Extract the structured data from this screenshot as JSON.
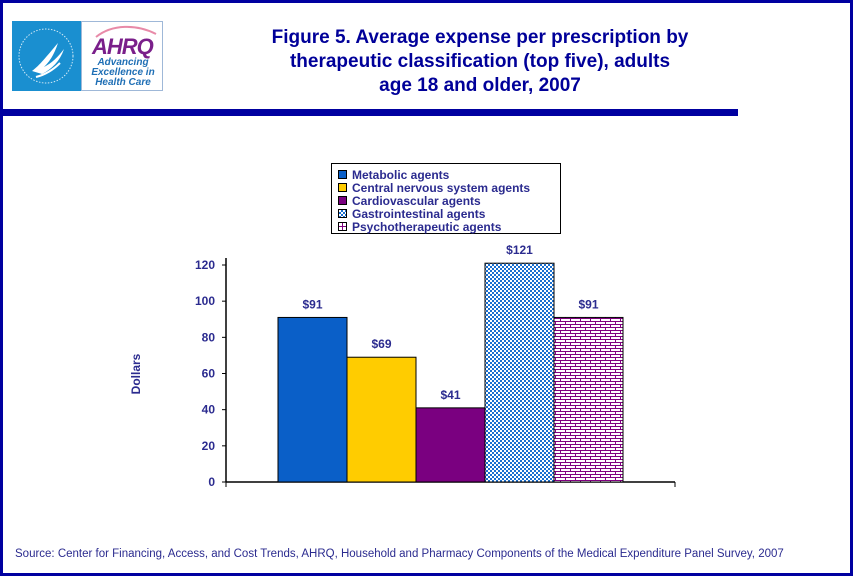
{
  "header": {
    "logo": {
      "hhs_icon": "hhs-eagle-seal-icon",
      "ahrq_wordmark": "AHRQ",
      "ahrq_tagline": [
        "Advancing",
        "Excellence in",
        "Health Care"
      ]
    },
    "title_lines": [
      "Figure 5. Average expense per prescription by",
      "therapeutic classification (top five), adults",
      "age 18 and older, 2007"
    ]
  },
  "colors": {
    "frame": "#0000a0",
    "title": "#000099",
    "text": "#2b2b8f",
    "metabolic": "#0a5fc8",
    "cns": "#ffcc00",
    "cardiovascular": "#7a0080",
    "gastrointestinal": "#1a6fd0",
    "psychotherapeutic": "#800080"
  },
  "chart_data": {
    "type": "bar",
    "title": "Figure 5. Average expense per prescription by therapeutic classification (top five), adults age 18 and older, 2007",
    "xlabel": "",
    "ylabel": "Dollars",
    "ylim": [
      0,
      120
    ],
    "yticks": [
      0,
      20,
      40,
      60,
      80,
      100,
      120
    ],
    "grid": false,
    "legend_position": "top-center",
    "categories": [
      ""
    ],
    "series": [
      {
        "name": "Metabolic agents",
        "values": [
          91
        ],
        "label": "$91",
        "pattern": "solid",
        "color": "#0a5fc8"
      },
      {
        "name": "Central nervous system agents",
        "values": [
          69
        ],
        "label": "$69",
        "pattern": "solid",
        "color": "#ffcc00"
      },
      {
        "name": "Cardiovascular agents",
        "values": [
          41
        ],
        "label": "$41",
        "pattern": "solid",
        "color": "#7a0080"
      },
      {
        "name": "Gastrointestinal agents",
        "values": [
          121
        ],
        "label": "$121",
        "pattern": "dots",
        "color": "#1a6fd0"
      },
      {
        "name": "Psychotherapeutic agents",
        "values": [
          91
        ],
        "label": "$91",
        "pattern": "brick",
        "color": "#800080"
      }
    ]
  },
  "legend": {
    "items": [
      {
        "label": "Metabolic agents"
      },
      {
        "label": "Central nervous system agents"
      },
      {
        "label": "Cardiovascular agents"
      },
      {
        "label": "Gastrointestinal agents"
      },
      {
        "label": "Psychotherapeutic agents"
      }
    ]
  },
  "footer": {
    "source": "Source: Center for Financing, Access, and Cost Trends, AHRQ, Household and Pharmacy Components of the Medical Expenditure Panel Survey, 2007"
  }
}
